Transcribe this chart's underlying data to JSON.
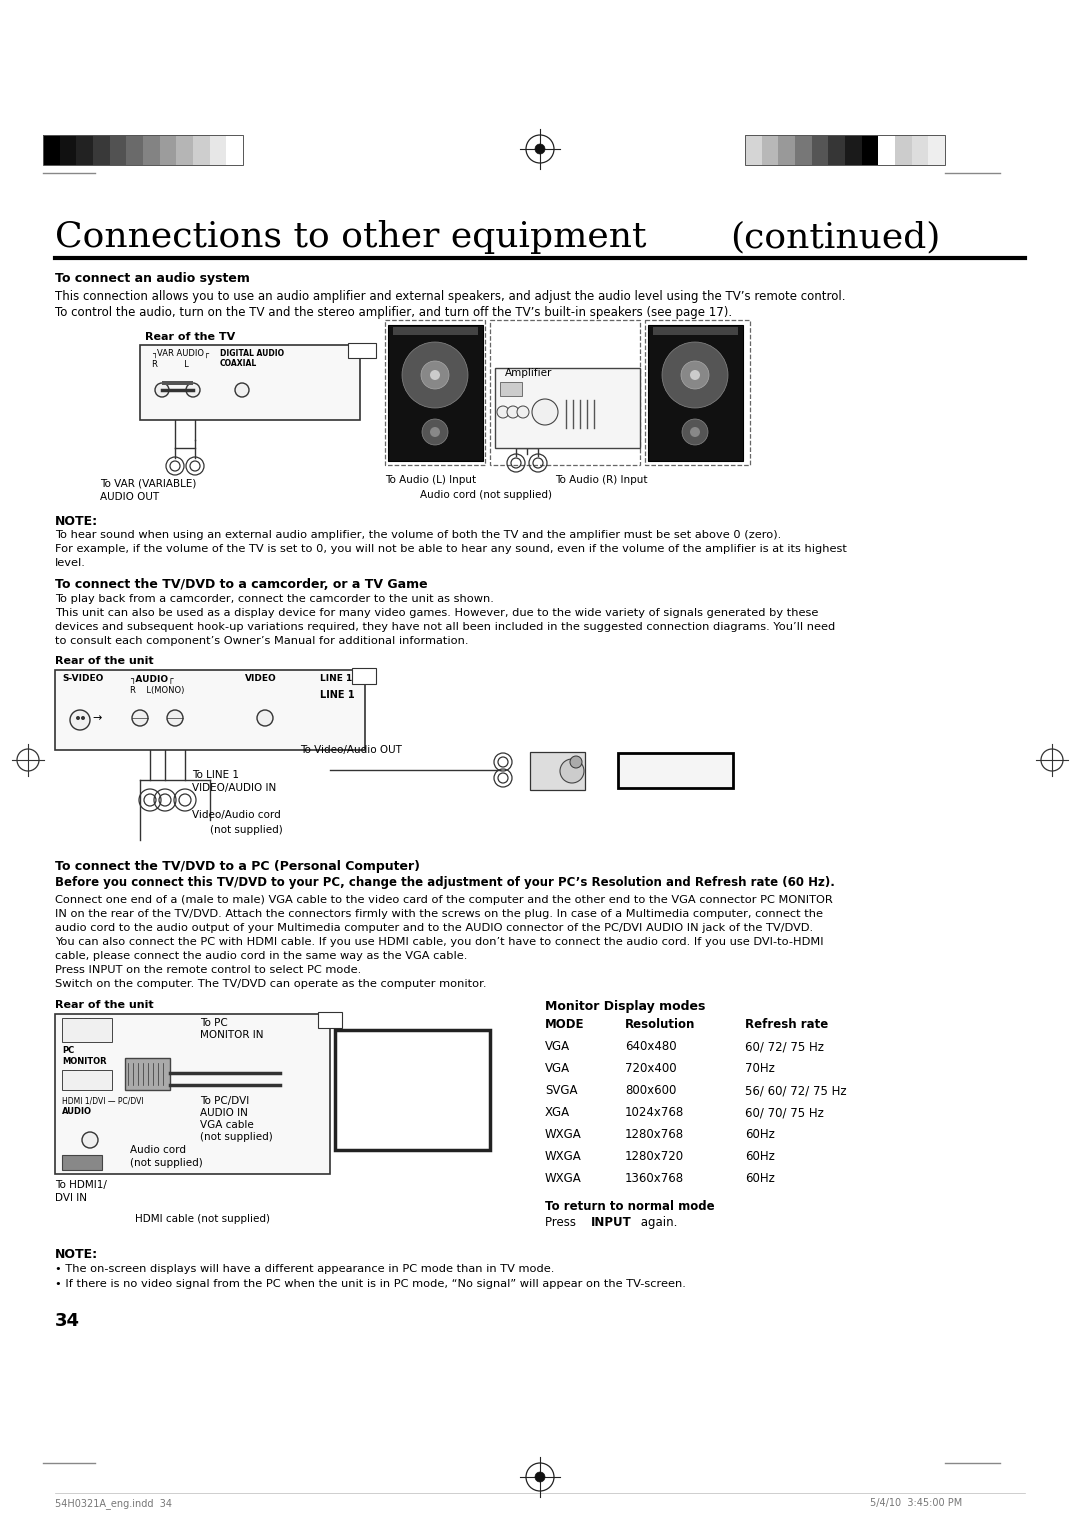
{
  "page_width": 10.8,
  "page_height": 15.28,
  "dpi": 100,
  "bg_color": "#ffffff",
  "title": "Connections to other equipment",
  "title_continued": "(continued)",
  "section1_heading": "To connect an audio system",
  "section1_body1": "This connection allows you to use an audio amplifier and external speakers, and adjust the audio level using the TV’s remote control.",
  "section1_body2": "To control the audio, turn on the TV and the stereo amplifier, and turn off the TV’s built-in speakers (see page 17).",
  "note1_heading": "NOTE:",
  "note1_body1": "To hear sound when using an external audio amplifier, the volume of both the TV and the amplifier must be set above 0 (zero).",
  "note1_body2": "For example, if the volume of the TV is set to 0, you will not be able to hear any sound, even if the volume of the amplifier is at its highest",
  "note1_body3": "level.",
  "section2_heading": "To connect the TV/DVD to a camcorder, or a TV Game",
  "section2_body1": "To play back from a camcorder, connect the camcorder to the unit as shown.",
  "section2_body2": "This unit can also be used as a display device for many video games. However, due to the wide variety of signals generated by these",
  "section2_body3": "devices and subsequent hook-up variations required, they have not all been included in the suggested connection diagrams. You’ll need",
  "section2_body4": "to consult each component’s Owner’s Manual for additional information.",
  "rear_unit": "Rear of the unit",
  "rear_tv": "Rear of the TV",
  "section3_heading": "To connect the TV/DVD to a PC (Personal Computer)",
  "section3_bold": "Before you connect this TV/DVD to your PC, change the adjustment of your PC’s Resolution and Refresh rate (60 Hz).",
  "section3_body1": "Connect one end of a (male to male) VGA cable to the video card of the computer and the other end to the VGA connector PC MONITOR",
  "section3_body2": "IN on the rear of the TV/DVD. Attach the connectors firmly with the screws on the plug. In case of a Multimedia computer, connect the",
  "section3_body3": "audio cord to the audio output of your Multimedia computer and to the AUDIO connector of the PC/DVI AUDIO IN jack of the TV/DVD.",
  "section3_body4": "You can also connect the PC with HDMI cable. If you use HDMI cable, you don’t have to connect the audio cord. If you use DVI-to-HDMI",
  "section3_body5": "cable, please connect the audio cord in the same way as the VGA cable.",
  "section3_body6": "Press INPUT on the remote control to select PC mode.",
  "section3_body7": "Switch on the computer. The TV/DVD can operate as the computer monitor.",
  "monitor_display_title": "Monitor Display modes",
  "monitor_modes": [
    [
      "MODE",
      "Resolution",
      "Refresh rate"
    ],
    [
      "VGA",
      "640x480",
      "60/ 72/ 75 Hz"
    ],
    [
      "VGA",
      "720x400",
      "70Hz"
    ],
    [
      "SVGA",
      "800x600",
      "56/ 60/ 72/ 75 Hz"
    ],
    [
      "XGA",
      "1024x768",
      "60/ 70/ 75 Hz"
    ],
    [
      "WXGA",
      "1280x768",
      "60Hz"
    ],
    [
      "WXGA",
      "1280x720",
      "60Hz"
    ],
    [
      "WXGA",
      "1360x768",
      "60Hz"
    ]
  ],
  "normal_mode_label": "To return to normal mode",
  "normal_mode_body": "Press ",
  "normal_mode_bold": "INPUT",
  "normal_mode_end": " again.",
  "note2_heading": "NOTE:",
  "note2_body1": "The on-screen displays will have a different appearance in PC mode than in TV mode.",
  "note2_body2": "If there is no video signal from the PC when the unit is in PC mode, “No signal” will appear on the TV-screen.",
  "page_number": "34",
  "footer_left": "54H0321A_eng.indd  34",
  "footer_right": "5/4/10  3:45:00 PM"
}
